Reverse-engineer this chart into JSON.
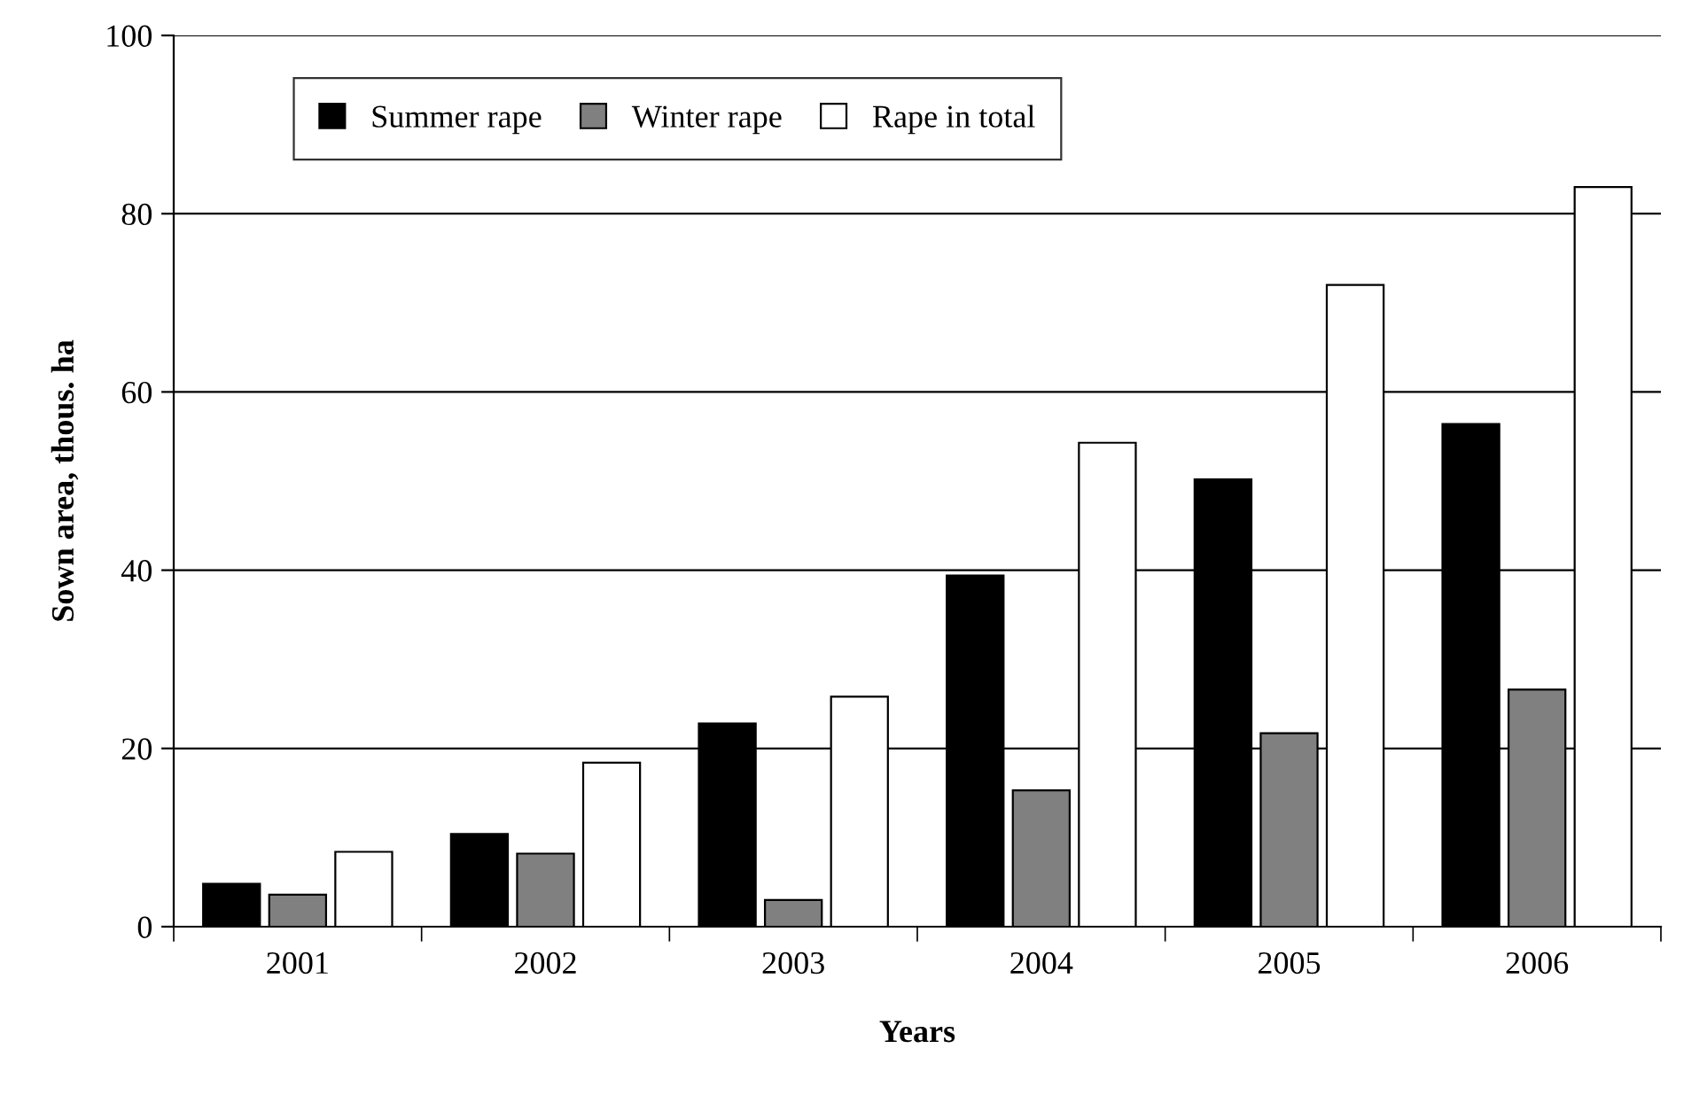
{
  "chart_data": {
    "type": "bar",
    "xlabel": "Years",
    "ylabel": "Sown area, thous. ha",
    "categories": [
      "2001",
      "2002",
      "2003",
      "2004",
      "2005",
      "2006"
    ],
    "series": [
      {
        "name": "Summer rape",
        "color": "#000000",
        "values": [
          4.8,
          10.4,
          22.8,
          39.4,
          50.2,
          56.4
        ]
      },
      {
        "name": "Winter rape",
        "color": "#808080",
        "values": [
          3.6,
          8.2,
          3.0,
          15.3,
          21.7,
          26.6
        ]
      },
      {
        "name": "Rape in total",
        "color": "#ffffff",
        "values": [
          8.4,
          18.4,
          25.8,
          54.3,
          72,
          83
        ]
      }
    ],
    "ylim": [
      0,
      100
    ],
    "yticks": [
      0,
      20,
      40,
      60,
      80,
      100
    ],
    "grid": "y",
    "legend": "top left"
  }
}
